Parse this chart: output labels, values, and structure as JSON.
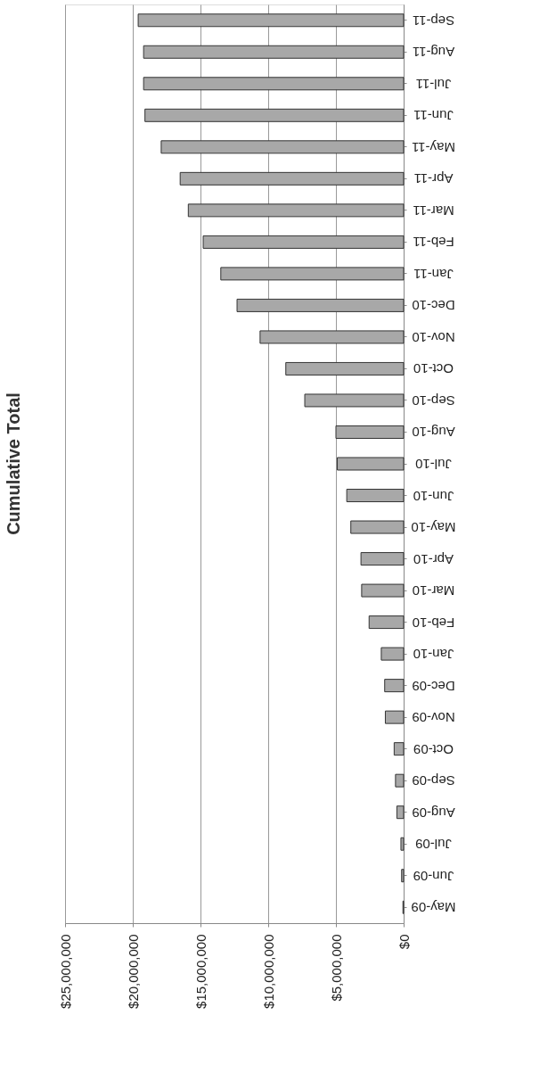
{
  "chart_data": {
    "type": "bar",
    "title": "Cumulative Total",
    "orientation": "horizontal",
    "categories": [
      "Sep-11",
      "Aug-11",
      "Jul-11",
      "Jun-11",
      "May-11",
      "Apr-11",
      "Mar-11",
      "Feb-11",
      "Jan-11",
      "Dec-10",
      "Nov-10",
      "Oct-10",
      "Sep-10",
      "Aug-10",
      "Jul-10",
      "Jun-10",
      "May-10",
      "Apr-10",
      "Mar-10",
      "Feb-10",
      "Jan-10",
      "Dec-09",
      "Nov-09",
      "Oct-09",
      "Sep-09",
      "Aug-09",
      "Jul-09",
      "Jun-09",
      "May-09"
    ],
    "values": [
      19600000,
      19200000,
      19200000,
      19100000,
      17900000,
      16500000,
      15900000,
      14800000,
      13500000,
      12300000,
      10600000,
      8700000,
      7300000,
      5000000,
      4900000,
      4200000,
      3900000,
      3150000,
      3100000,
      2550000,
      1650000,
      1400000,
      1350000,
      700000,
      600000,
      500000,
      200000,
      150000,
      50000
    ],
    "color": "#a8a8a8",
    "xlim": [
      25000000,
      0
    ],
    "xticks": [
      {
        "value": 25000000,
        "label": "$25,000,000"
      },
      {
        "value": 20000000,
        "label": "$20,000,000"
      },
      {
        "value": 15000000,
        "label": "$15,000,000"
      },
      {
        "value": 10000000,
        "label": "$10,000,000"
      },
      {
        "value": 5000000,
        "label": "$5,000,000"
      },
      {
        "value": 0,
        "label": "$0"
      }
    ],
    "grid": "x"
  }
}
